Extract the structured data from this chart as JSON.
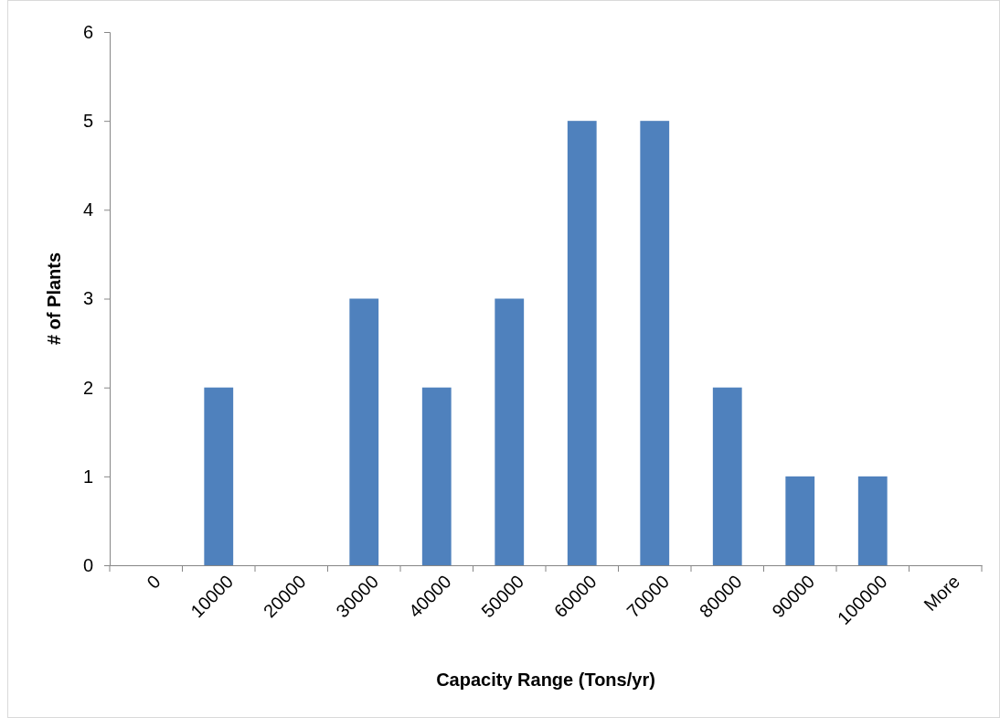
{
  "chart_data": {
    "type": "bar",
    "xlabel": "Capacity Range (Tons/yr)",
    "ylabel": "# of Plants",
    "categories": [
      "0",
      "10000",
      "20000",
      "30000",
      "40000",
      "50000",
      "60000",
      "70000",
      "80000",
      "90000",
      "100000",
      "More"
    ],
    "values": [
      0,
      2,
      0,
      3,
      2,
      3,
      5,
      5,
      2,
      1,
      1,
      0
    ],
    "color": "#4f81bd",
    "ylim": [
      0,
      6
    ],
    "yticks": [
      0,
      1,
      2,
      3,
      4,
      5,
      6
    ],
    "grid": false
  }
}
